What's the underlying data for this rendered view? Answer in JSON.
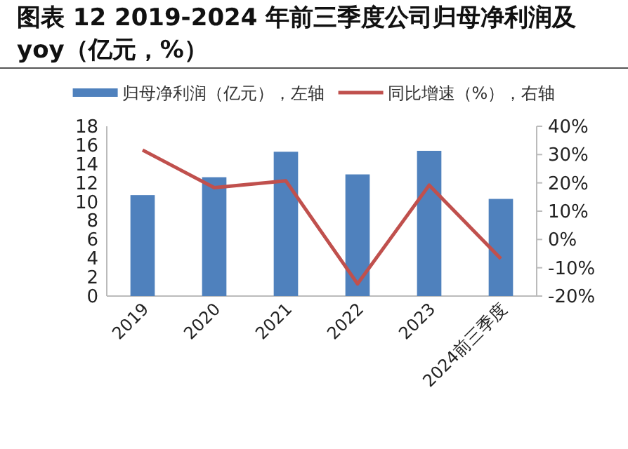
{
  "chart_data": {
    "type": "bar",
    "title": "图表 12 2019-2024 年前三季度公司归母净利润及 yoy（亿元，%）",
    "categories": [
      "2019",
      "2020",
      "2021",
      "2022",
      "2023",
      "2024前三季度"
    ],
    "series": [
      {
        "name": "归母净利润（亿元），左轴",
        "color": "#4f81bd",
        "values": [
          10.7,
          12.6,
          15.3,
          12.9,
          15.4,
          10.3
        ]
      },
      {
        "name": "同比增速（%），右轴",
        "type": "line",
        "axis": "y2",
        "color": "#c0504d",
        "values": [
          31.6,
          18.3,
          20.7,
          -15.7,
          19.2,
          -6.8
        ]
      }
    ],
    "ylim": [
      0,
      18
    ],
    "yticks": [
      0,
      2,
      4,
      6,
      8,
      10,
      12,
      14,
      16,
      18
    ],
    "y2lim": [
      -20,
      40
    ],
    "y2ticks": [
      {
        "value": -20,
        "label": "-20%"
      },
      {
        "value": -10,
        "label": "-10%"
      },
      {
        "value": 0,
        "label": "0%"
      },
      {
        "value": 10,
        "label": "10%"
      },
      {
        "value": 20,
        "label": "20%"
      },
      {
        "value": 30,
        "label": "30%"
      },
      {
        "value": 40,
        "label": "40%"
      }
    ],
    "legend": "top",
    "grid": false
  }
}
